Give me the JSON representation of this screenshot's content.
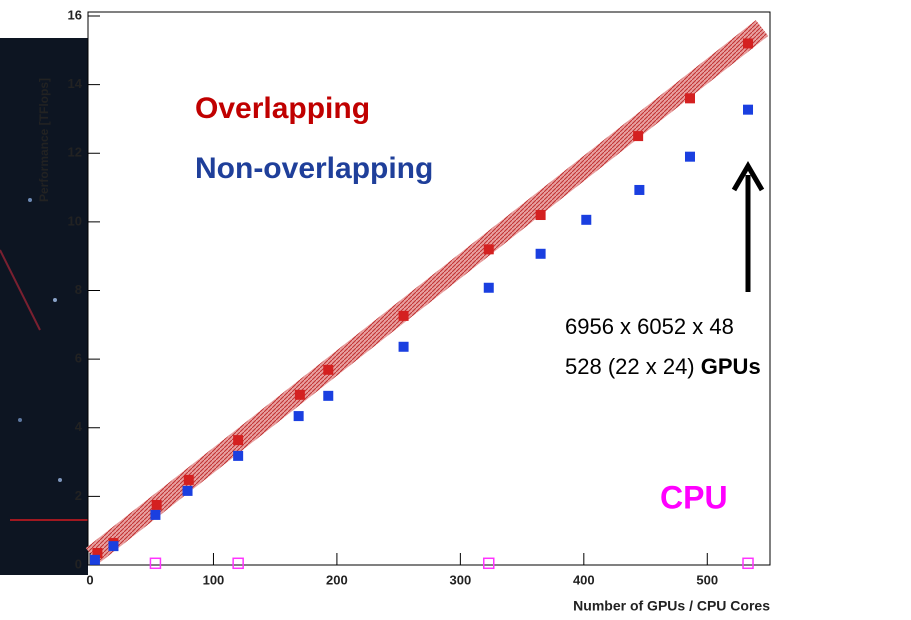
{
  "chart_data": {
    "type": "scatter",
    "xlabel": "Number of GPUs / CPU Cores",
    "ylabel": "Performance [TFlops]",
    "xlim": [
      0,
      550
    ],
    "ylim": [
      0,
      16
    ],
    "xticks": [
      0,
      100,
      200,
      300,
      400,
      500
    ],
    "yticks": [
      0,
      2,
      4,
      6,
      8,
      10,
      12,
      14,
      16
    ],
    "series": [
      {
        "name": "Overlapping",
        "color": "#d42020",
        "x": [
          6,
          19,
          54,
          80,
          120,
          170,
          193,
          254,
          323,
          365,
          444,
          486,
          533
        ],
        "values": [
          0.35,
          0.64,
          1.75,
          2.48,
          3.64,
          4.96,
          5.69,
          7.26,
          9.2,
          10.2,
          12.5,
          13.6,
          15.2
        ]
      },
      {
        "name": "Non-overlapping",
        "color": "#1a3fe0",
        "x": [
          4,
          19,
          53,
          79,
          120,
          169,
          193,
          254,
          323,
          365,
          402,
          445,
          486,
          533
        ],
        "values": [
          0.15,
          0.55,
          1.46,
          2.16,
          3.18,
          4.34,
          4.93,
          6.36,
          8.08,
          9.07,
          10.06,
          10.93,
          11.9,
          13.27
        ]
      },
      {
        "name": "CPU",
        "color": "#ff33ff",
        "x": [
          53,
          120,
          323,
          533
        ],
        "values": [
          0.05,
          0.05,
          0.05,
          0.05
        ]
      }
    ],
    "annotations": [
      "6956 x 6052 x 48",
      "528 (22 x 24)",
      "GPUs"
    ]
  }
}
